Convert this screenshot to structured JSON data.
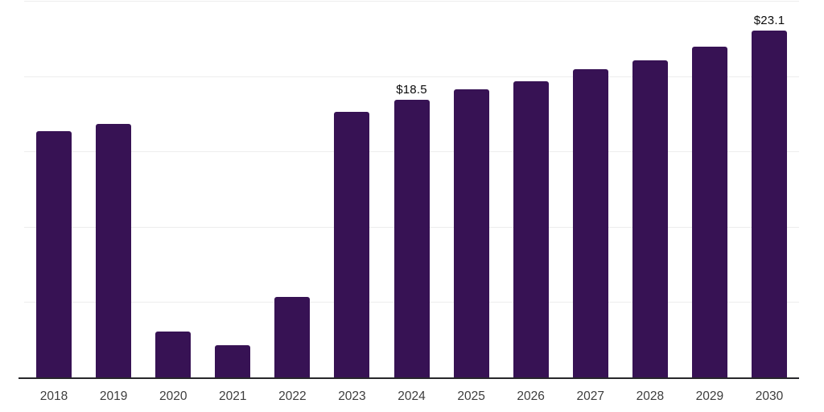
{
  "chart_data": {
    "type": "bar",
    "title": "",
    "xlabel": "",
    "ylabel": "",
    "categories": [
      "2018",
      "2019",
      "2020",
      "2021",
      "2022",
      "2023",
      "2024",
      "2025",
      "2026",
      "2027",
      "2028",
      "2029",
      "2030"
    ],
    "values": [
      16.4,
      16.9,
      3.1,
      2.2,
      5.4,
      17.7,
      18.5,
      19.2,
      19.7,
      20.5,
      21.1,
      22.0,
      23.1
    ],
    "data_labels": [
      "",
      "",
      "",
      "",
      "",
      "",
      "$18.5",
      "",
      "",
      "",
      "",
      "",
      "$23.1"
    ],
    "ylim": [
      0,
      25
    ],
    "gridline_step": 5,
    "grid": true,
    "legend_visible": false,
    "y_tick_labels_visible": false
  },
  "colors": {
    "bar_fill": "#371254",
    "gridline": "#ededed",
    "axis_line": "#27272b",
    "tick_label": "#3d3d3d",
    "value_label": "#0b0b0b",
    "background": "#ffffff"
  }
}
